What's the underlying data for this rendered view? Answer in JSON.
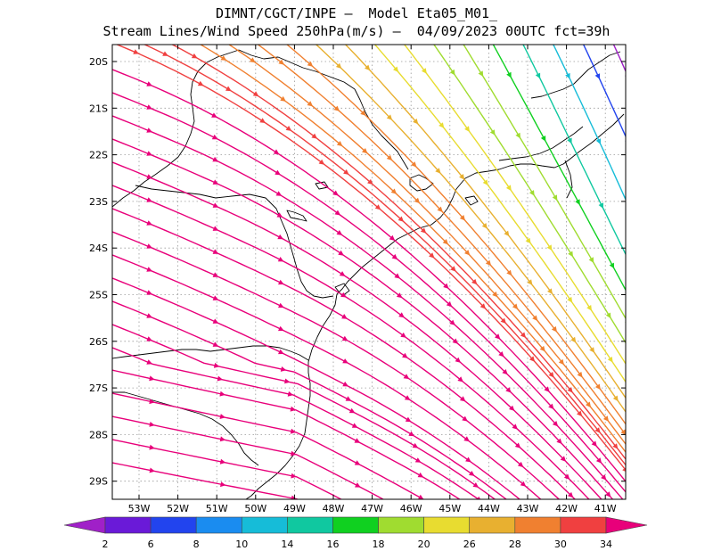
{
  "title": {
    "line1": "DIMNT/CGCT/INPE —  Model Eta05_M01_",
    "line2": "Stream Lines/Wind Speed 250hPa(m/s) —  04/09/2023 00UTC fct=39h"
  },
  "map": {
    "lat_labels": [
      "20S",
      "21S",
      "22S",
      "23S",
      "24S",
      "25S",
      "26S",
      "27S",
      "28S",
      "29S"
    ],
    "lon_labels": [
      "53W",
      "52W",
      "51W",
      "50W",
      "49W",
      "48W",
      "47W",
      "46W",
      "45W",
      "44W",
      "43W",
      "42W",
      "41W"
    ],
    "lat_range": [
      -29.5,
      -19.6
    ],
    "lon_range": [
      -53.7,
      -40.9
    ],
    "gridlines": "dotted"
  },
  "colorbar": {
    "labels": [
      "2",
      "6",
      "8",
      "10",
      "14",
      "16",
      "18",
      "20",
      "26",
      "28",
      "30",
      "34"
    ],
    "colors": [
      "#a020c8",
      "#6a1ad8",
      "#2244ee",
      "#1a8cf0",
      "#16bcd8",
      "#10c8a0",
      "#10d020",
      "#a0dc30",
      "#e8dc30",
      "#e8b030",
      "#f08030",
      "#f04040",
      "#e8007a"
    ],
    "unit": "m/s"
  }
}
